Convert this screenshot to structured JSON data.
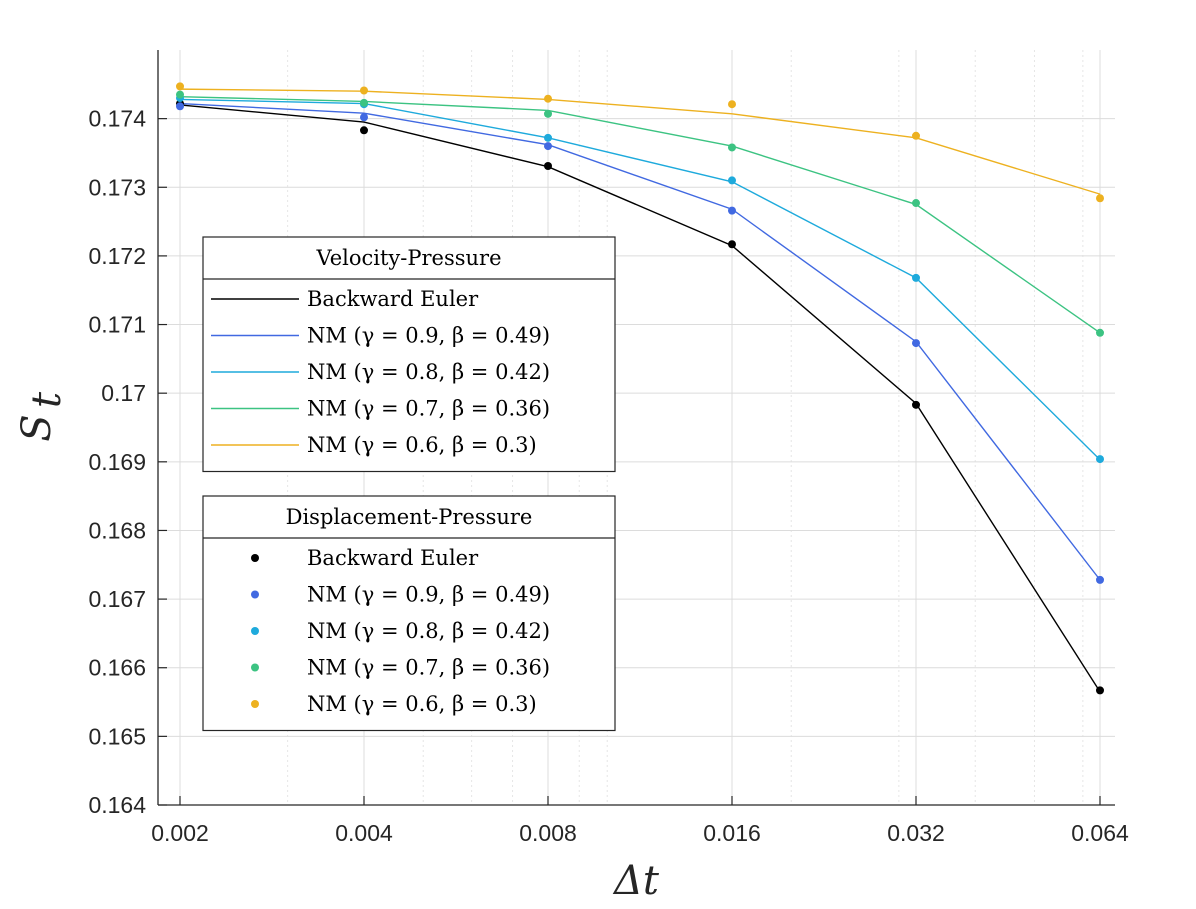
{
  "chart_data": {
    "type": "line",
    "xscale": "log2",
    "x": [
      0.002,
      0.004,
      0.008,
      0.016,
      0.032,
      0.064
    ],
    "x_tick_labels": [
      "0.002",
      "0.004",
      "0.008",
      "0.016",
      "0.032",
      "0.064"
    ],
    "xlabel": "Δt",
    "ylabel_main": "S",
    "ylabel_sub": "t",
    "ylim": [
      0.164,
      0.175
    ],
    "y_ticks": [
      0.164,
      0.165,
      0.166,
      0.167,
      0.168,
      0.169,
      0.17,
      0.171,
      0.172,
      0.173,
      0.174
    ],
    "y_tick_labels": [
      "0.164",
      "0.165",
      "0.166",
      "0.167",
      "0.168",
      "0.169",
      "0.17",
      "0.171",
      "0.172",
      "0.173",
      "0.174"
    ],
    "grid": true,
    "line_series": [
      {
        "name": "Backward Euler",
        "color": "#000000",
        "values": [
          0.1742,
          0.17395,
          0.1733,
          0.17215,
          0.16985,
          0.16565
        ]
      },
      {
        "name": "NM (γ = 0.9, β = 0.49)",
        "color": "#4169e1",
        "values": [
          0.17422,
          0.17408,
          0.17362,
          0.17268,
          0.17075,
          0.16728
        ]
      },
      {
        "name": "NM (γ = 0.8, β = 0.42)",
        "color": "#1eaadc",
        "values": [
          0.17428,
          0.17422,
          0.17372,
          0.17308,
          0.17168,
          0.16903
        ]
      },
      {
        "name": "NM (γ = 0.7, β = 0.36)",
        "color": "#3cc382",
        "values": [
          0.17432,
          0.17425,
          0.17412,
          0.1736,
          0.17275,
          0.17088
        ]
      },
      {
        "name": "NM (γ = 0.6, β = 0.3)",
        "color": "#edb120",
        "values": [
          0.17443,
          0.1744,
          0.17428,
          0.17407,
          0.17372,
          0.1729
        ]
      }
    ],
    "marker_series": [
      {
        "name": "Backward Euler",
        "color": "#000000",
        "values": [
          0.17422,
          0.17383,
          0.17331,
          0.17217,
          0.16983,
          0.16567
        ]
      },
      {
        "name": "NM (γ = 0.9, β = 0.49)",
        "color": "#4169e1",
        "values": [
          0.17418,
          0.17402,
          0.1736,
          0.17266,
          0.17073,
          0.16728
        ]
      },
      {
        "name": "NM (γ = 0.8, β = 0.42)",
        "color": "#1eaadc",
        "values": [
          0.1743,
          0.17421,
          0.17372,
          0.1731,
          0.17168,
          0.16904
        ]
      },
      {
        "name": "NM (γ = 0.7, β = 0.36)",
        "color": "#3cc382",
        "values": [
          0.17435,
          0.17423,
          0.17407,
          0.17358,
          0.17277,
          0.17088
        ]
      },
      {
        "name": "NM (γ = 0.6, β = 0.3)",
        "color": "#edb120",
        "values": [
          0.17447,
          0.17441,
          0.17429,
          0.17421,
          0.17375,
          0.17284
        ]
      }
    ],
    "legends": [
      {
        "title": "Velocity-Pressure",
        "kind": "line",
        "placement": "left-middle"
      },
      {
        "title": "Displacement-Pressure",
        "kind": "marker",
        "placement": "left-bottom"
      }
    ]
  }
}
